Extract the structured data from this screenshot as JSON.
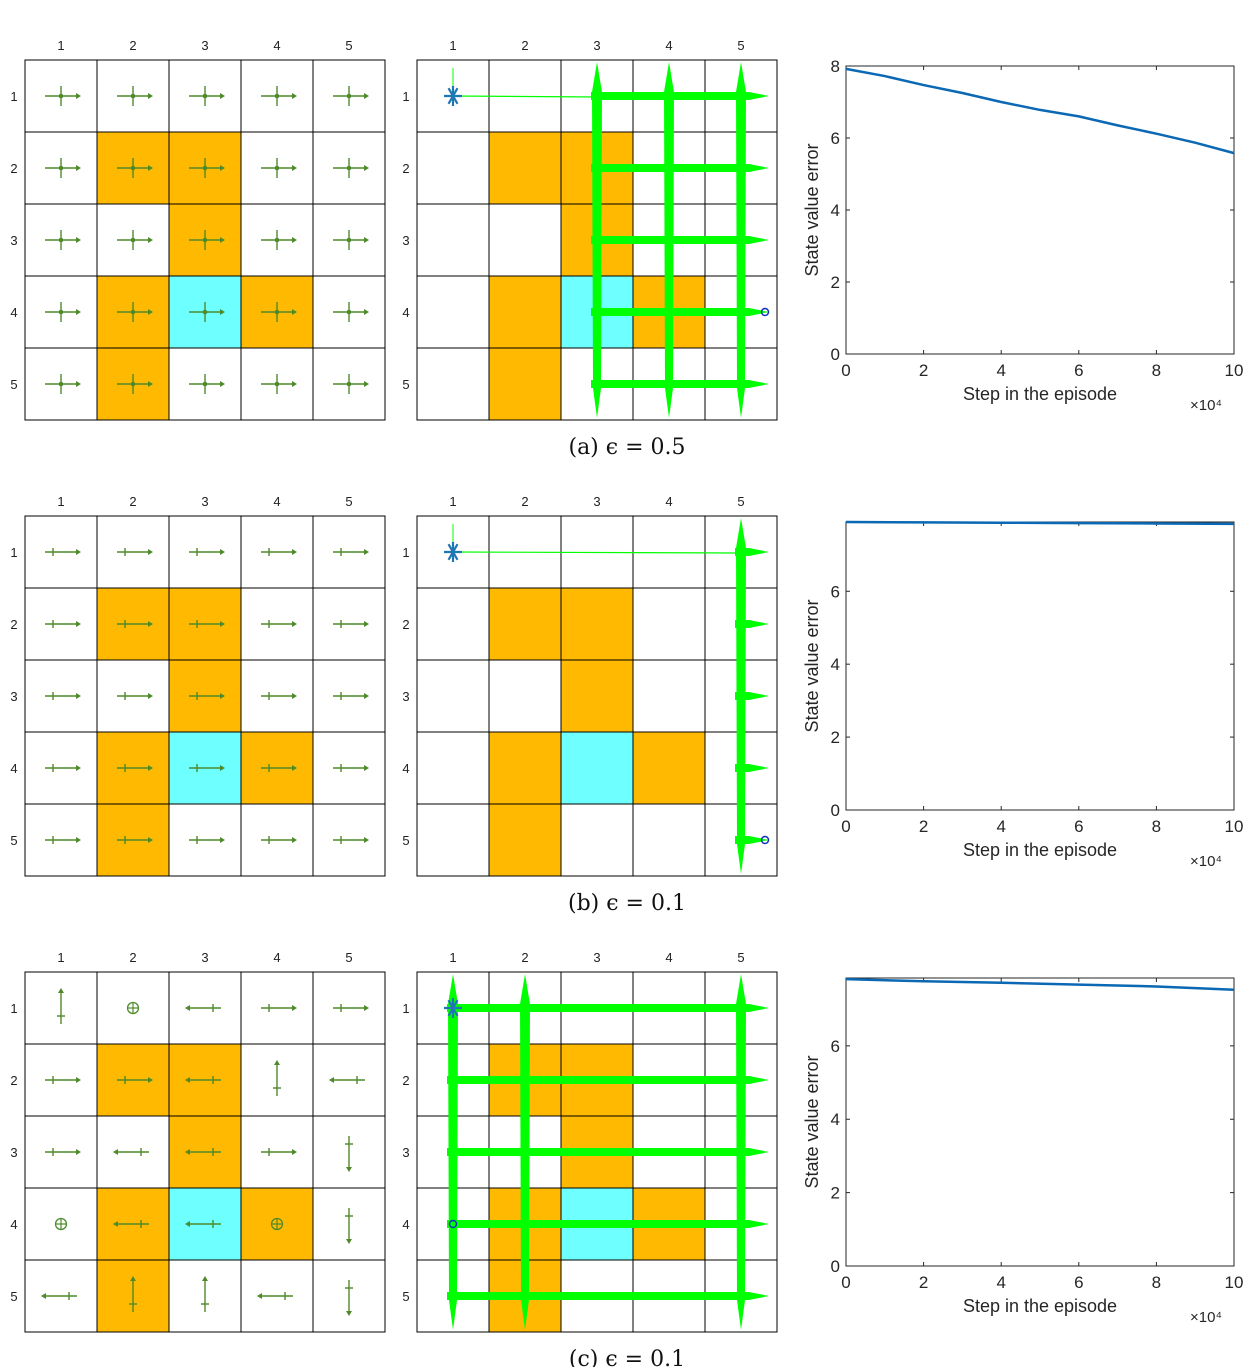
{
  "colors": {
    "forbidden": "#FFB900",
    "target": "#6EFFFF",
    "arrow": "#4F8A2A",
    "trajectory": "#00FF00",
    "start_marker": "#1F77B4",
    "line": "#0A68B4",
    "grid": "#000000"
  },
  "grid": {
    "col_labels": [
      "1",
      "2",
      "3",
      "4",
      "5"
    ],
    "row_labels": [
      "1",
      "2",
      "3",
      "4",
      "5"
    ],
    "forbidden_cells": [
      [
        2,
        2
      ],
      [
        2,
        3
      ],
      [
        3,
        3
      ],
      [
        4,
        2
      ],
      [
        4,
        4
      ],
      [
        5,
        2
      ]
    ],
    "target_cell": [
      4,
      3
    ]
  },
  "panels": [
    {
      "caption": "(a) ϵ = 0.5",
      "policy_icon": "all-directions-arrow-icon",
      "policy": [
        [
          "udlr",
          "udlr",
          "udlr",
          "udlr",
          "udlr"
        ],
        [
          "udlr",
          "udlr",
          "udlr",
          "udlr",
          "udlr"
        ],
        [
          "udlr",
          "udlr",
          "udlr",
          "udlr",
          "udlr"
        ],
        [
          "udlr",
          "udlr",
          "udlr",
          "udlr",
          "udlr"
        ],
        [
          "udlr",
          "udlr",
          "udlr",
          "udlr",
          "udlr"
        ]
      ],
      "trajectory": {
        "start": [
          1,
          1
        ],
        "end": [
          4,
          5
        ],
        "cols_visited": [
          3,
          4,
          5
        ],
        "rows_visited": [
          1,
          2,
          3,
          4,
          5
        ]
      },
      "chart_data": {
        "type": "line",
        "xlabel": "Step in the episode",
        "ylabel": "State value error",
        "x_exponent": "×10⁴",
        "xlim": [
          0,
          10
        ],
        "ylim": [
          0,
          8
        ],
        "xticks": [
          "0",
          "2",
          "4",
          "6",
          "8",
          "10"
        ],
        "yticks": [
          "0",
          "2",
          "4",
          "6",
          "8"
        ],
        "x": [
          0,
          1,
          2,
          3,
          4,
          5,
          6,
          7,
          8,
          9,
          10
        ],
        "y": [
          7.92,
          7.72,
          7.47,
          7.25,
          7.0,
          6.78,
          6.6,
          6.35,
          6.12,
          5.87,
          5.58
        ]
      }
    },
    {
      "caption": "(b) ϵ = 0.1",
      "policy_icon": "right-arrow-icon",
      "policy": [
        [
          "r",
          "r",
          "r",
          "r",
          "r"
        ],
        [
          "r",
          "r",
          "r",
          "r",
          "r"
        ],
        [
          "r",
          "r",
          "r",
          "r",
          "r"
        ],
        [
          "r",
          "r",
          "r",
          "r",
          "r"
        ],
        [
          "r",
          "r",
          "r",
          "r",
          "r"
        ]
      ],
      "trajectory": {
        "start": [
          1,
          1
        ],
        "end": [
          5,
          5
        ],
        "cols_visited": [
          5
        ],
        "rows_visited": [
          1,
          2,
          3,
          4,
          5
        ]
      },
      "chart_data": {
        "type": "line",
        "xlabel": "Step in the episode",
        "ylabel": "State value error",
        "x_exponent": "×10⁴",
        "xlim": [
          0,
          10
        ],
        "ylim": [
          0,
          7.9
        ],
        "xticks": [
          "0",
          "2",
          "4",
          "6",
          "8",
          "10"
        ],
        "yticks": [
          "0",
          "2",
          "4",
          "6"
        ],
        "x": [
          0,
          2,
          4,
          6,
          8,
          10
        ],
        "y": [
          7.9,
          7.89,
          7.88,
          7.87,
          7.86,
          7.85
        ]
      }
    },
    {
      "caption": "(c) ϵ = 0.1",
      "policy_icon": "mixed-arrow-icon",
      "policy": [
        [
          "u",
          "o",
          "l",
          "r",
          "r"
        ],
        [
          "r",
          "r",
          "l",
          "u",
          "l"
        ],
        [
          "r",
          "l",
          "l",
          "r",
          "d"
        ],
        [
          "o",
          "l",
          "l",
          "o",
          "d"
        ],
        [
          "l",
          "u",
          "u",
          "l",
          "d"
        ]
      ],
      "trajectory": {
        "start": [
          1,
          1
        ],
        "end": [
          4,
          1
        ],
        "cols_visited": [
          1,
          2,
          5
        ],
        "rows_visited": [
          1,
          2,
          3,
          4,
          5
        ]
      },
      "chart_data": {
        "type": "line",
        "xlabel": "Step in the episode",
        "ylabel": "State value error",
        "x_exponent": "×10⁴",
        "xlim": [
          0,
          10
        ],
        "ylim": [
          0,
          7.85
        ],
        "xticks": [
          "0",
          "2",
          "4",
          "6",
          "8",
          "10"
        ],
        "yticks": [
          "0",
          "2",
          "4",
          "6"
        ],
        "x": [
          0,
          2,
          4,
          6,
          8,
          10
        ],
        "y": [
          7.82,
          7.76,
          7.72,
          7.67,
          7.62,
          7.53
        ]
      }
    }
  ]
}
